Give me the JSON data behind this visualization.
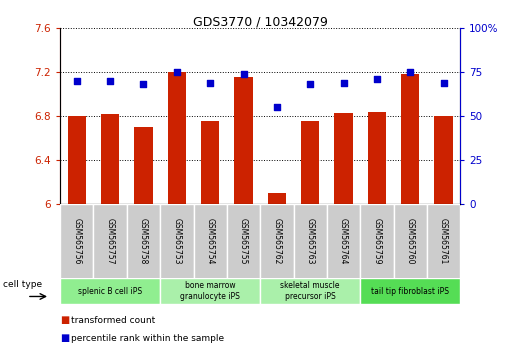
{
  "title": "GDS3770 / 10342079",
  "samples": [
    "GSM565756",
    "GSM565757",
    "GSM565758",
    "GSM565753",
    "GSM565754",
    "GSM565755",
    "GSM565762",
    "GSM565763",
    "GSM565764",
    "GSM565759",
    "GSM565760",
    "GSM565761"
  ],
  "transformed_count": [
    6.8,
    6.82,
    6.7,
    7.2,
    6.75,
    7.16,
    6.1,
    6.75,
    6.83,
    6.84,
    7.18,
    6.8
  ],
  "percentile_rank": [
    70,
    70,
    68,
    75,
    69,
    74,
    55,
    68,
    69,
    71,
    75,
    69
  ],
  "cell_types": [
    {
      "label": "splenic B cell iPS",
      "start": 0,
      "end": 3,
      "color": "#90ee90"
    },
    {
      "label": "bone marrow\ngranulocyte iPS",
      "start": 3,
      "end": 6,
      "color": "#aaf0aa"
    },
    {
      "label": "skeletal muscle\nprecursor iPS",
      "start": 6,
      "end": 9,
      "color": "#aaf0aa"
    },
    {
      "label": "tail tip fibroblast iPS",
      "start": 9,
      "end": 12,
      "color": "#55dd55"
    }
  ],
  "ylim_left": [
    6.0,
    7.6
  ],
  "ylim_right": [
    0,
    100
  ],
  "yticks_left": [
    6.0,
    6.4,
    6.8,
    7.2,
    7.6
  ],
  "yticks_right": [
    0,
    25,
    50,
    75,
    100
  ],
  "ytick_labels_left": [
    "6",
    "6.4",
    "6.8",
    "7.2",
    "7.6"
  ],
  "ytick_labels_right": [
    "0",
    "25",
    "50",
    "75",
    "100%"
  ],
  "bar_color": "#cc2200",
  "dot_color": "#0000cc",
  "bar_width": 0.55,
  "legend_items": [
    {
      "color": "#cc2200",
      "label": "transformed count"
    },
    {
      "color": "#0000cc",
      "label": "percentile rank within the sample"
    }
  ],
  "background_sample": "#cccccc",
  "cell_type_label": "cell type"
}
